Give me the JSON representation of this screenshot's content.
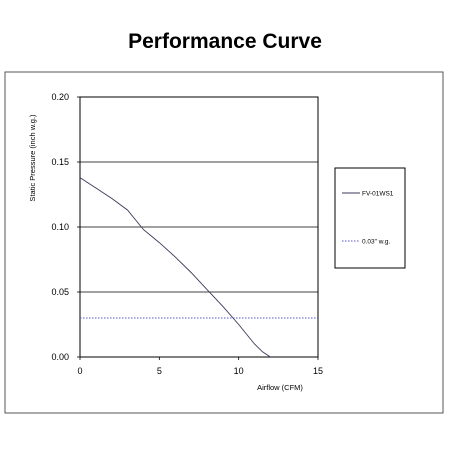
{
  "title": "Performance Curve",
  "chart_data": {
    "type": "line",
    "title": "Performance Curve",
    "xlabel": "Airflow (CFM)",
    "ylabel": "Static Pressure (inch w.g.)",
    "xlim": [
      0,
      15
    ],
    "ylim": [
      0,
      0.2
    ],
    "x_ticks": [
      "0",
      "5",
      "10",
      "15"
    ],
    "y_ticks": [
      "0.00",
      "0.05",
      "0.10",
      "0.15",
      "0.20"
    ],
    "grid": "horizontal",
    "legend_position": "right",
    "series": [
      {
        "name": "FV-01WS1",
        "color": "#3a3a5a",
        "style": "solid",
        "x": [
          0,
          1,
          2,
          3,
          4,
          5,
          6,
          7,
          8,
          9,
          10,
          11,
          11.5,
          12
        ],
        "y": [
          0.138,
          0.13,
          0.122,
          0.113,
          0.098,
          0.088,
          0.077,
          0.065,
          0.052,
          0.039,
          0.025,
          0.01,
          0.004,
          0.0
        ]
      },
      {
        "name": "0.03\" w.g.",
        "color": "#5555cc",
        "style": "dotted",
        "x": [
          0,
          15
        ],
        "y": [
          0.03,
          0.03
        ]
      }
    ]
  }
}
